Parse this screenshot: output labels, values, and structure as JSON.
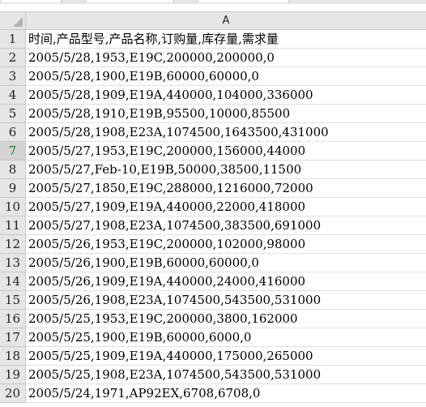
{
  "column_header": "A",
  "rows": [
    {
      "num": "1",
      "value": "时间,产品型号,产品名称,订购量,库存量,需求量"
    },
    {
      "num": "2",
      "value": "2005/5/28,1953,E19C,200000,200000,0"
    },
    {
      "num": "3",
      "value": "2005/5/28,1900,E19B,60000,60000,0"
    },
    {
      "num": "4",
      "value": "2005/5/28,1909,E19A,440000,104000,336000"
    },
    {
      "num": "5",
      "value": "2005/5/28,1910,E19B,95500,10000,85500"
    },
    {
      "num": "6",
      "value": "2005/5/28,1908,E23A,1074500,1643500,431000"
    },
    {
      "num": "7",
      "value": "2005/5/27,1953,E19C,200000,156000,44000"
    },
    {
      "num": "8",
      "value": "2005/5/27,Feb-10,E19B,50000,38500,11500"
    },
    {
      "num": "9",
      "value": "2005/5/27,1850,E19C,288000,1216000,72000"
    },
    {
      "num": "10",
      "value": "2005/5/27,1909,E19A,440000,22000,418000"
    },
    {
      "num": "11",
      "value": "2005/5/27,1908,E23A,1074500,383500,691000"
    },
    {
      "num": "12",
      "value": "2005/5/26,1953,E19C,200000,102000,98000"
    },
    {
      "num": "13",
      "value": "2005/5/26,1900,E19B,60000,60000,0"
    },
    {
      "num": "14",
      "value": "2005/5/26,1909,E19A,440000,24000,416000"
    },
    {
      "num": "15",
      "value": "2005/5/26,1908,E23A,1074500,543500,531000"
    },
    {
      "num": "16",
      "value": "2005/5/25,1953,E19C,200000,3800,162000"
    },
    {
      "num": "17",
      "value": "2005/5/25,1900,E19B,60000,6000,0"
    },
    {
      "num": "18",
      "value": "2005/5/25,1909,E19A,440000,175000,265000"
    },
    {
      "num": "19",
      "value": "2005/5/25,1908,E23A,1074500,543500,531000"
    },
    {
      "num": "20",
      "value": "2005/5/24,1971,AP92EX,6708,6708,0"
    }
  ],
  "active_row": "7",
  "colors": {
    "header_bg": "#e6e6e6",
    "grid_line": "#e1e1e1",
    "selection": "#217346"
  }
}
